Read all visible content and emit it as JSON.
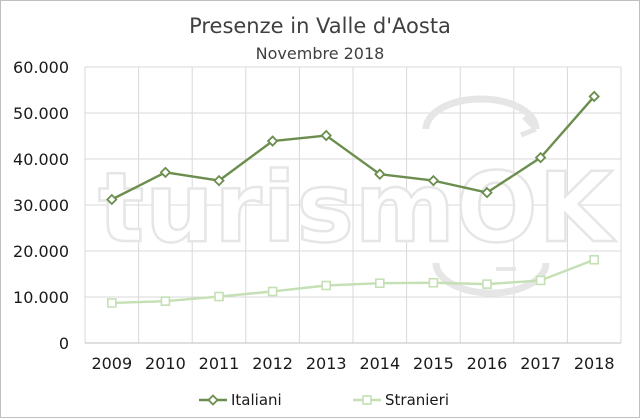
{
  "chart_data": {
    "type": "line",
    "title": "Presenze in Valle d'Aosta",
    "subtitle": "Novembre 2018",
    "categories": [
      "2009",
      "2010",
      "2011",
      "2012",
      "2013",
      "2014",
      "2015",
      "2016",
      "2017",
      "2018"
    ],
    "series": [
      {
        "name": "Italiani",
        "values": [
          31200,
          37100,
          35300,
          43900,
          45100,
          36700,
          35300,
          32700,
          40300,
          53600
        ],
        "color": "#6b8e4e",
        "marker": "diamond"
      },
      {
        "name": "Stranieri",
        "values": [
          8700,
          9100,
          10100,
          11200,
          12500,
          13000,
          13100,
          12800,
          13600,
          18100
        ],
        "color": "#c5e0b4",
        "marker": "square"
      }
    ],
    "ylim": [
      0,
      60000
    ],
    "yticks": [
      0,
      10000,
      20000,
      30000,
      40000,
      50000,
      60000
    ],
    "ytick_labels": [
      "0",
      "10.000",
      "20.000",
      "30.000",
      "40.000",
      "50.000",
      "60.000"
    ],
    "grid": true,
    "legend_position": "bottom",
    "watermark": "turismOK"
  }
}
